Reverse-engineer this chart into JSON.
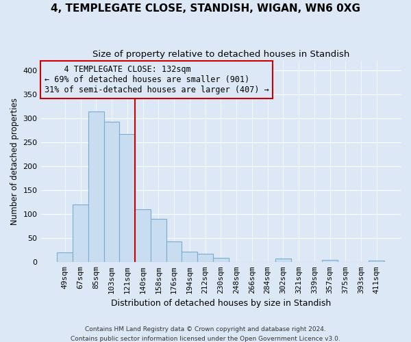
{
  "title": "4, TEMPLEGATE CLOSE, STANDISH, WIGAN, WN6 0XG",
  "subtitle": "Size of property relative to detached houses in Standish",
  "xlabel": "Distribution of detached houses by size in Standish",
  "ylabel": "Number of detached properties",
  "bar_labels": [
    "49sqm",
    "67sqm",
    "85sqm",
    "103sqm",
    "121sqm",
    "140sqm",
    "158sqm",
    "176sqm",
    "194sqm",
    "212sqm",
    "230sqm",
    "248sqm",
    "266sqm",
    "284sqm",
    "302sqm",
    "321sqm",
    "339sqm",
    "357sqm",
    "375sqm",
    "393sqm",
    "411sqm"
  ],
  "bar_values": [
    20,
    120,
    315,
    293,
    267,
    110,
    90,
    43,
    22,
    17,
    9,
    0,
    0,
    0,
    7,
    0,
    0,
    5,
    0,
    0,
    3
  ],
  "bar_color": "#c8ddf0",
  "bar_edge_color": "#7aacd0",
  "vline_color": "#cc0000",
  "vline_x_index": 4,
  "ylim": [
    0,
    420
  ],
  "yticks": [
    0,
    50,
    100,
    150,
    200,
    250,
    300,
    350,
    400
  ],
  "annotation_title": "4 TEMPLEGATE CLOSE: 132sqm",
  "annotation_line1": "← 69% of detached houses are smaller (901)",
  "annotation_line2": "31% of semi-detached houses are larger (407) →",
  "footer_line1": "Contains HM Land Registry data © Crown copyright and database right 2024.",
  "footer_line2": "Contains public sector information licensed under the Open Government Licence v3.0.",
  "background_color": "#dce8f5",
  "grid_color": "#ffffff",
  "annotation_box_color": "#dce8f5",
  "annotation_border_color": "#cc0000"
}
